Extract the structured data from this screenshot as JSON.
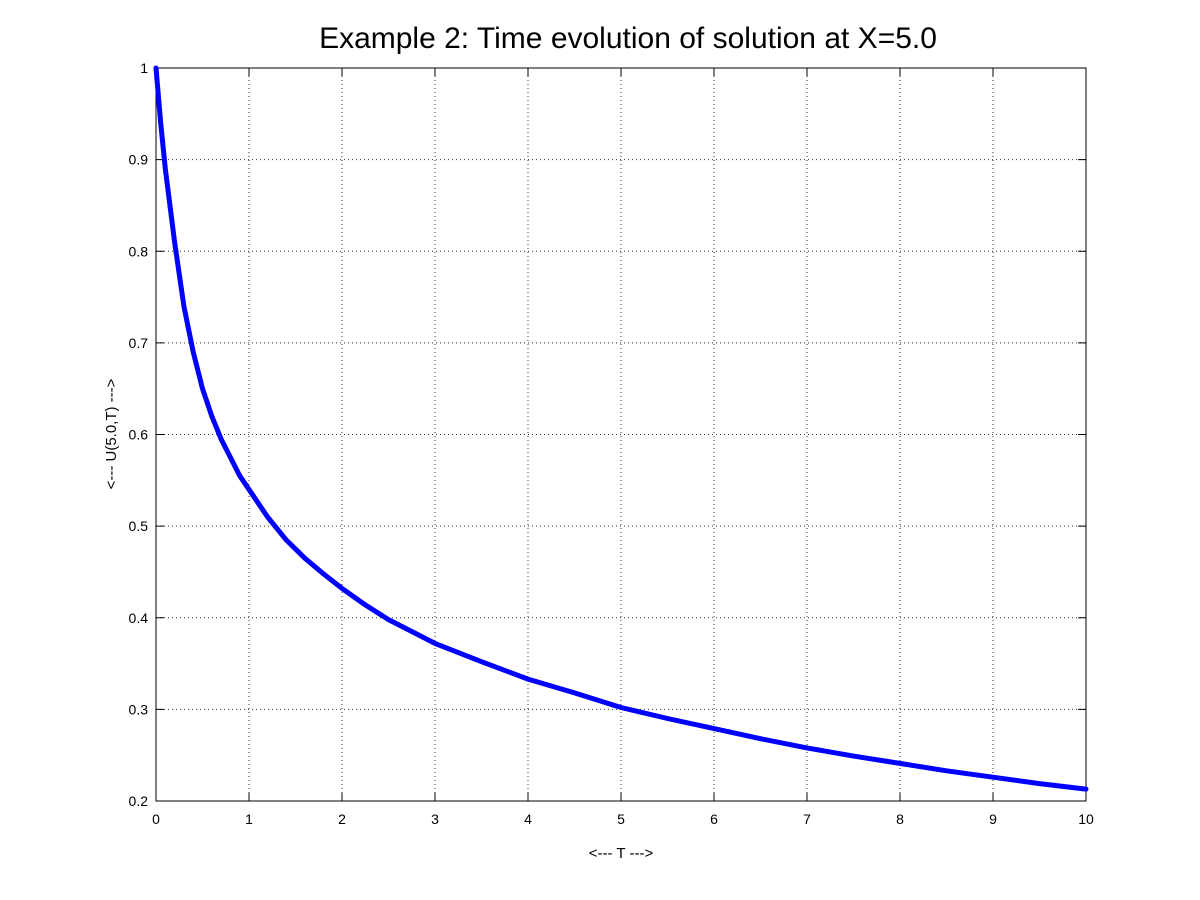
{
  "chart_data": {
    "type": "line",
    "title": "Example 2: Time evolution of solution at X=5.0",
    "xlabel": "<--- T --->",
    "ylabel": "<--- U(5.0,T) --->",
    "xlim": [
      0,
      10
    ],
    "ylim": [
      0.2,
      1
    ],
    "grid": true,
    "x_ticks": [
      0,
      1,
      2,
      3,
      4,
      5,
      6,
      7,
      8,
      9,
      10
    ],
    "x_tick_labels": [
      "0",
      "1",
      "2",
      "3",
      "4",
      "5",
      "6",
      "7",
      "8",
      "9",
      "10"
    ],
    "y_ticks": [
      0.2,
      0.3,
      0.4,
      0.5,
      0.6,
      0.7,
      0.8,
      0.9,
      1.0
    ],
    "y_tick_labels": [
      "0.2",
      "0.3",
      "0.4",
      "0.5",
      "0.6",
      "0.7",
      "0.8",
      "0.9",
      "1"
    ],
    "series": [
      {
        "color": "#0000ff",
        "x": [
          0,
          0.05,
          0.1,
          0.2,
          0.3,
          0.4,
          0.5,
          0.6,
          0.7,
          0.8,
          0.9,
          1.0,
          1.2,
          1.4,
          1.6,
          1.8,
          2.0,
          2.25,
          2.5,
          2.75,
          3.0,
          3.5,
          4.0,
          4.5,
          5.0,
          5.5,
          6.0,
          6.5,
          7.0,
          7.5,
          8.0,
          8.5,
          9.0,
          9.5,
          10.0
        ],
        "y": [
          1.0,
          0.94,
          0.89,
          0.81,
          0.74,
          0.69,
          0.65,
          0.62,
          0.595,
          0.575,
          0.555,
          0.54,
          0.51,
          0.485,
          0.465,
          0.448,
          0.432,
          0.414,
          0.398,
          0.385,
          0.372,
          0.352,
          0.333,
          0.318,
          0.302,
          0.29,
          0.279,
          0.268,
          0.258,
          0.249,
          0.241,
          0.233,
          0.226,
          0.219,
          0.213
        ]
      }
    ]
  }
}
